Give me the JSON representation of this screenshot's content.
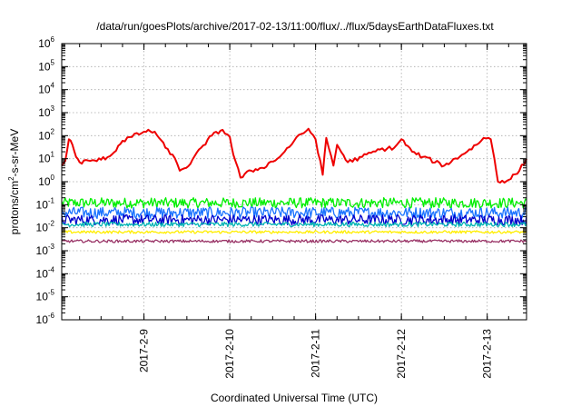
{
  "chart_data": {
    "type": "line",
    "title": "/data/run/goesPlots/archive/2017-02-13/11:00/flux/../flux/5daysEarthDataFluxes.txt",
    "xlabel": "Coordinated Universal Time (UTC)",
    "ylabel": {
      "base": "protons/cm",
      "sup": "2",
      "rest": "-s-sr-MeV"
    },
    "yscale": "log",
    "ylim": [
      1e-06,
      1000000.0
    ],
    "xlim": [
      "2017-02-08 01:00",
      "2017-02-13 11:00"
    ],
    "grid": true,
    "y_ticks": [
      {
        "value": 1e-06,
        "base": "10",
        "exp": "-6"
      },
      {
        "value": 1e-05,
        "base": "10",
        "exp": "-5"
      },
      {
        "value": 0.0001,
        "base": "10",
        "exp": "-4"
      },
      {
        "value": 0.001,
        "base": "10",
        "exp": "-3"
      },
      {
        "value": 0.01,
        "base": "10",
        "exp": "-2"
      },
      {
        "value": 0.1,
        "base": "10",
        "exp": "-1"
      },
      {
        "value": 1,
        "base": "10",
        "exp": "0"
      },
      {
        "value": 10,
        "base": "10",
        "exp": "1"
      },
      {
        "value": 100,
        "base": "10",
        "exp": "2"
      },
      {
        "value": 1000,
        "base": "10",
        "exp": "3"
      },
      {
        "value": 10000,
        "base": "10",
        "exp": "4"
      },
      {
        "value": 100000,
        "base": "10",
        "exp": "5"
      },
      {
        "value": 1000000,
        "base": "10",
        "exp": "6"
      }
    ],
    "x_ticks": [
      {
        "value": "2017-02-09 00:00",
        "label": "2017-2-9"
      },
      {
        "value": "2017-02-10 00:00",
        "label": "2017-2-10"
      },
      {
        "value": "2017-02-11 00:00",
        "label": "2017-2-11"
      },
      {
        "value": "2017-02-12 00:00",
        "label": "2017-2-12"
      },
      {
        "value": "2017-02-13 00:00",
        "label": "2017-2-13"
      }
    ],
    "series": [
      {
        "color": "#ee0000",
        "noise": 0.18,
        "x": [
          "2017-02-08 01:00",
          "2017-02-08 02:00",
          "2017-02-08 03:00",
          "2017-02-08 04:00",
          "2017-02-08 05:00",
          "2017-02-08 06:00",
          "2017-02-08 09:00",
          "2017-02-08 12:00",
          "2017-02-08 15:00",
          "2017-02-08 18:00",
          "2017-02-09 00:00",
          "2017-02-09 03:00",
          "2017-02-09 06:00",
          "2017-02-09 08:00",
          "2017-02-09 10:00",
          "2017-02-09 13:00",
          "2017-02-09 16:00",
          "2017-02-09 19:00",
          "2017-02-09 22:00",
          "2017-02-10 00:00",
          "2017-02-10 01:00",
          "2017-02-10 03:00",
          "2017-02-10 06:00",
          "2017-02-10 09:00",
          "2017-02-10 14:00",
          "2017-02-10 18:00",
          "2017-02-10 22:00",
          "2017-02-11 00:00",
          "2017-02-11 02:00",
          "2017-02-11 03:00",
          "2017-02-11 05:00",
          "2017-02-11 06:00",
          "2017-02-11 09:00",
          "2017-02-11 13:00",
          "2017-02-11 18:00",
          "2017-02-11 22:00",
          "2017-02-12 00:00",
          "2017-02-12 03:00",
          "2017-02-12 06:00",
          "2017-02-12 12:00",
          "2017-02-12 17:00",
          "2017-02-12 21:00",
          "2017-02-12 23:00",
          "2017-02-13 01:00",
          "2017-02-13 02:00",
          "2017-02-13 03:00",
          "2017-02-13 06:00",
          "2017-02-13 09:00",
          "2017-02-13 11:00"
        ],
        "y": [
          5,
          8,
          70,
          40,
          12,
          7,
          8,
          9,
          15,
          60,
          150,
          150,
          30,
          15,
          3,
          6,
          30,
          100,
          180,
          90,
          15,
          1.5,
          3,
          4,
          12,
          60,
          200,
          70,
          2,
          80,
          5,
          40,
          7,
          12,
          25,
          30,
          70,
          20,
          12,
          5,
          15,
          40,
          80,
          70,
          10,
          1,
          1.2,
          3,
          10
        ]
      },
      {
        "color": "#00ee00",
        "base": 0.12,
        "noise": 0.45,
        "x": [
          "2017-02-08 01:00",
          "2017-02-13 11:00"
        ],
        "y": [
          0.12,
          0.12
        ]
      },
      {
        "color": "#1a73ff",
        "base": 0.045,
        "noise": 0.5,
        "x": [
          "2017-02-08 01:00",
          "2017-02-13 11:00"
        ],
        "y": [
          0.045,
          0.045
        ]
      },
      {
        "color": "#0000cc",
        "base": 0.022,
        "noise": 0.45,
        "x": [
          "2017-02-08 01:00",
          "2017-02-13 11:00"
        ],
        "y": [
          0.022,
          0.022
        ]
      },
      {
        "color": "#00b3b3",
        "base": 0.014,
        "noise": 0.2,
        "x": [
          "2017-02-08 01:00",
          "2017-02-13 11:00"
        ],
        "y": [
          0.014,
          0.014
        ]
      },
      {
        "color": "#ffee00",
        "base": 0.0065,
        "noise": 0.12,
        "x": [
          "2017-02-08 01:00",
          "2017-02-13 11:00"
        ],
        "y": [
          0.0065,
          0.0065
        ]
      },
      {
        "color": "#993366",
        "base": 0.0026,
        "noise": 0.12,
        "x": [
          "2017-02-08 01:00",
          "2017-02-13 11:00"
        ],
        "y": [
          0.0026,
          0.0026
        ]
      }
    ]
  }
}
